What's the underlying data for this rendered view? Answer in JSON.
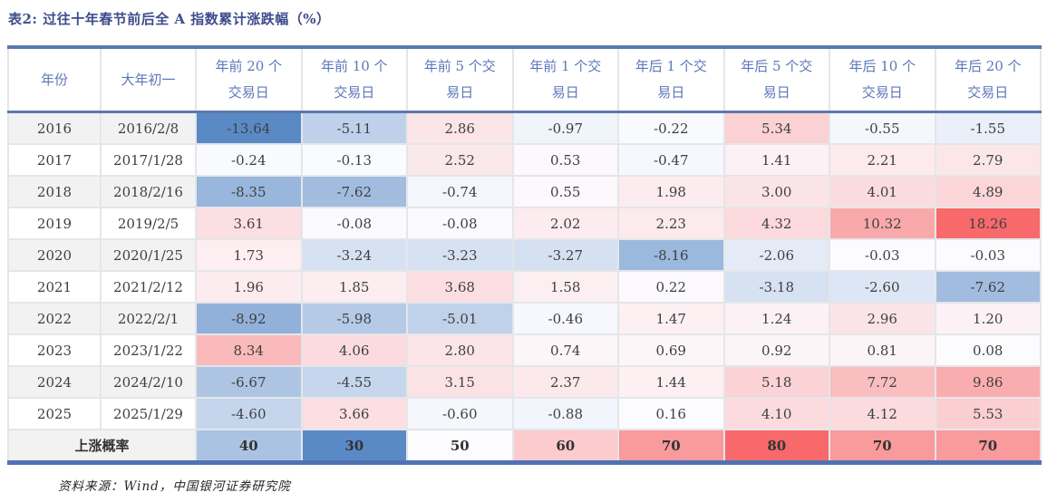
{
  "chart_data": {
    "type": "table",
    "title": "表2: 过往十年春节前后全 A 指数累计涨跌幅（%）",
    "source": "资料来源：Wind，中国银河证券研究院",
    "columns": [
      "年份",
      "大年初一",
      "年前 20 个\n交易日",
      "年前 10 个\n交易日",
      "年前 5 个交\n易日",
      "年前 1 个交\n易日",
      "年后 1 个交\n易日",
      "年后 5 个交\n易日",
      "年后 10 个\n交易日",
      "年后 20 个\n交易日"
    ],
    "rows": [
      {
        "year": "2016",
        "date": "2016/2/8",
        "values": [
          "-13.64",
          "-5.11",
          "2.86",
          "-0.97",
          "-0.22",
          "5.34",
          "-0.55",
          "-1.55"
        ]
      },
      {
        "year": "2017",
        "date": "2017/1/28",
        "values": [
          "-0.24",
          "-0.13",
          "2.52",
          "0.53",
          "-0.47",
          "1.41",
          "2.21",
          "2.79"
        ]
      },
      {
        "year": "2018",
        "date": "2018/2/16",
        "values": [
          "-8.35",
          "-7.62",
          "-0.74",
          "0.55",
          "1.98",
          "3.00",
          "4.01",
          "4.89"
        ]
      },
      {
        "year": "2019",
        "date": "2019/2/5",
        "values": [
          "3.61",
          "-0.08",
          "-0.08",
          "2.02",
          "2.23",
          "4.32",
          "10.32",
          "18.26"
        ]
      },
      {
        "year": "2020",
        "date": "2020/1/25",
        "values": [
          "1.73",
          "-3.24",
          "-3.23",
          "-3.27",
          "-8.16",
          "-2.06",
          "-0.03",
          "-0.03"
        ]
      },
      {
        "year": "2021",
        "date": "2021/2/12",
        "values": [
          "1.96",
          "1.85",
          "3.68",
          "1.58",
          "0.22",
          "-3.18",
          "-2.60",
          "-7.62"
        ]
      },
      {
        "year": "2022",
        "date": "2022/2/1",
        "values": [
          "-8.92",
          "-5.98",
          "-5.01",
          "-0.46",
          "1.47",
          "1.24",
          "2.96",
          "1.20"
        ]
      },
      {
        "year": "2023",
        "date": "2023/1/22",
        "values": [
          "8.34",
          "4.06",
          "2.80",
          "0.74",
          "0.69",
          "0.92",
          "0.81",
          "0.08"
        ]
      },
      {
        "year": "2024",
        "date": "2024/2/10",
        "values": [
          "-6.67",
          "-4.55",
          "3.15",
          "2.37",
          "1.44",
          "5.18",
          "7.72",
          "9.86"
        ]
      },
      {
        "year": "2025",
        "date": "2025/1/29",
        "values": [
          "-4.60",
          "3.66",
          "-0.60",
          "-0.88",
          "0.16",
          "4.10",
          "4.12",
          "5.53"
        ]
      }
    ],
    "summary_row": {
      "label": "上涨概率",
      "values": [
        "40",
        "30",
        "50",
        "60",
        "70",
        "80",
        "70",
        "70"
      ]
    },
    "heat_scale": {
      "min_color": "#5A8AC6",
      "mid_color": "#FCFCFF",
      "max_color": "#F8696B",
      "value_min": -13.64,
      "value_mid": 0,
      "value_max": 18.26,
      "prob_min": 30,
      "prob_mid": 50,
      "prob_max": 80
    },
    "accent_colors": {
      "title_text": "#3E4C8C",
      "header_text": "#5C77B8",
      "thick_rule": "#5B79AD",
      "bottom_rule": "#5171B2"
    }
  }
}
